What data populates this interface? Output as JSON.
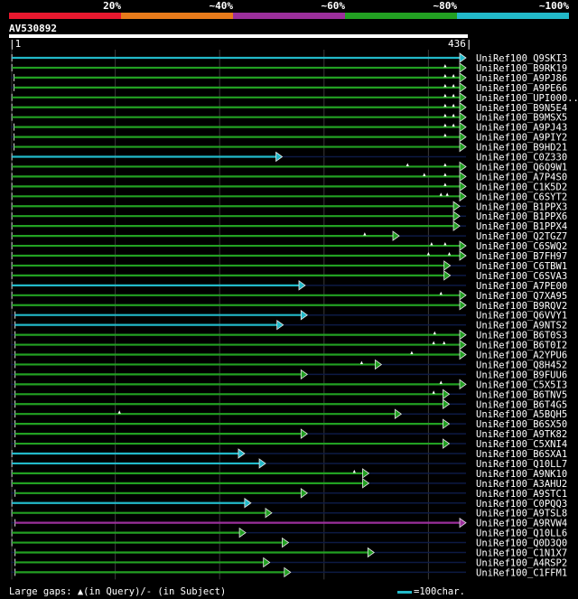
{
  "identity_legend": [
    {
      "label": "20%",
      "color": "#e8182e"
    },
    {
      "label": "~40%",
      "color": "#e87b1a"
    },
    {
      "label": "~60%",
      "color": "#9b2f9b"
    },
    {
      "label": "~80%",
      "color": "#22a022"
    },
    {
      "label": "~100%",
      "color": "#22b9c9"
    }
  ],
  "query": {
    "id": "AV530892",
    "start": "1",
    "end": "436",
    "length": 436
  },
  "footer": {
    "gaps_label": "Large gaps: ▲(in Query)/- (in Subject)",
    "scale_label": "=100char.",
    "scale_color": "#22b9c9"
  },
  "hits": [
    {
      "name": "UniRef100_Q9SKI3",
      "start": 1,
      "end": 436,
      "color": "cyan",
      "gaps": []
    },
    {
      "name": "UniRef100_B9RK19",
      "start": 1,
      "end": 436,
      "color": "green",
      "gaps": [
        416
      ]
    },
    {
      "name": "UniRef100_A9PJ86",
      "start": 3,
      "end": 436,
      "color": "green",
      "gaps": [
        416,
        424
      ]
    },
    {
      "name": "UniRef100_A9PE66",
      "start": 3,
      "end": 436,
      "color": "green",
      "gaps": [
        416,
        424
      ]
    },
    {
      "name": "UniRef100_UPI000..",
      "start": 1,
      "end": 436,
      "color": "green",
      "gaps": [
        416,
        424
      ]
    },
    {
      "name": "UniRef100_B9N5E4",
      "start": 1,
      "end": 436,
      "color": "green",
      "gaps": [
        416,
        424
      ]
    },
    {
      "name": "UniRef100_B9MSX5",
      "start": 1,
      "end": 436,
      "color": "green",
      "gaps": [
        416,
        424
      ]
    },
    {
      "name": "UniRef100_A9PJ43",
      "start": 3,
      "end": 436,
      "color": "green",
      "gaps": [
        416,
        424
      ]
    },
    {
      "name": "UniRef100_A9PIY2",
      "start": 3,
      "end": 436,
      "color": "green",
      "gaps": [
        416
      ]
    },
    {
      "name": "UniRef100_B9HD21",
      "start": 3,
      "end": 436,
      "color": "green",
      "gaps": []
    },
    {
      "name": "UniRef100_C0Z330",
      "start": 1,
      "end": 260,
      "color": "cyan",
      "gaps": []
    },
    {
      "name": "UniRef100_Q6Q9W1",
      "start": 1,
      "end": 436,
      "color": "green",
      "gaps": [
        380,
        416
      ]
    },
    {
      "name": "UniRef100_A7P4S0",
      "start": 1,
      "end": 436,
      "color": "green",
      "gaps": [
        396,
        416
      ]
    },
    {
      "name": "UniRef100_C1K5D2",
      "start": 1,
      "end": 436,
      "color": "green",
      "gaps": [
        416
      ]
    },
    {
      "name": "UniRef100_C6SYT2",
      "start": 1,
      "end": 436,
      "color": "green",
      "gaps": [
        412,
        418
      ]
    },
    {
      "name": "UniRef100_B1PPX3",
      "start": 1,
      "end": 430,
      "color": "green",
      "gaps": []
    },
    {
      "name": "UniRef100_B1PPX6",
      "start": 1,
      "end": 430,
      "color": "green",
      "gaps": []
    },
    {
      "name": "UniRef100_B1PPX4",
      "start": 1,
      "end": 430,
      "color": "green",
      "gaps": []
    },
    {
      "name": "UniRef100_Q2TGZ7",
      "start": 1,
      "end": 372,
      "color": "green",
      "gaps": [
        339
      ]
    },
    {
      "name": "UniRef100_C6SWQ2",
      "start": 1,
      "end": 436,
      "color": "green",
      "gaps": [
        403,
        416
      ]
    },
    {
      "name": "UniRef100_B7FH97",
      "start": 1,
      "end": 436,
      "color": "green",
      "gaps": [
        400,
        420
      ]
    },
    {
      "name": "UniRef100_C6TBW1",
      "start": 1,
      "end": 421,
      "color": "green",
      "gaps": []
    },
    {
      "name": "UniRef100_C6SVA3",
      "start": 1,
      "end": 421,
      "color": "green",
      "gaps": []
    },
    {
      "name": "UniRef100_A7PE00",
      "start": 1,
      "end": 282,
      "color": "cyan",
      "gaps": []
    },
    {
      "name": "UniRef100_Q7XA95",
      "start": 1,
      "end": 436,
      "color": "green",
      "gaps": [
        412
      ]
    },
    {
      "name": "UniRef100_B9RQV2",
      "start": 1,
      "end": 436,
      "color": "green",
      "gaps": []
    },
    {
      "name": "UniRef100_Q6VVY1",
      "start": 4,
      "end": 284,
      "color": "cyan",
      "gaps": []
    },
    {
      "name": "UniRef100_A9NTS2",
      "start": 4,
      "end": 261,
      "color": "cyan",
      "gaps": []
    },
    {
      "name": "UniRef100_B6T0S3",
      "start": 4,
      "end": 436,
      "color": "green",
      "gaps": [
        406
      ]
    },
    {
      "name": "UniRef100_B6T0I2",
      "start": 4,
      "end": 436,
      "color": "green",
      "gaps": [
        405,
        415
      ]
    },
    {
      "name": "UniRef100_A2YPU6",
      "start": 4,
      "end": 436,
      "color": "green",
      "gaps": [
        384
      ]
    },
    {
      "name": "UniRef100_Q8H452",
      "start": 4,
      "end": 355,
      "color": "green",
      "gaps": [
        336
      ]
    },
    {
      "name": "UniRef100_B9FUU6",
      "start": 4,
      "end": 284,
      "color": "green",
      "gaps": []
    },
    {
      "name": "UniRef100_C5X5I3",
      "start": 4,
      "end": 436,
      "color": "green",
      "gaps": [
        412
      ]
    },
    {
      "name": "UniRef100_B6TNV5",
      "start": 4,
      "end": 420,
      "color": "green",
      "gaps": [
        405
      ]
    },
    {
      "name": "UniRef100_B6T4G5",
      "start": 4,
      "end": 420,
      "color": "green",
      "gaps": []
    },
    {
      "name": "UniRef100_A5BQH5",
      "start": 4,
      "end": 374,
      "color": "green",
      "gaps": [
        104
      ]
    },
    {
      "name": "UniRef100_B6SX50",
      "start": 4,
      "end": 420,
      "color": "green",
      "gaps": []
    },
    {
      "name": "UniRef100_A9TK82",
      "start": 4,
      "end": 284,
      "color": "green",
      "gaps": []
    },
    {
      "name": "UniRef100_C5XNI4",
      "start": 4,
      "end": 420,
      "color": "green",
      "gaps": []
    },
    {
      "name": "UniRef100_B6SXA1",
      "start": 1,
      "end": 224,
      "color": "cyan",
      "gaps": []
    },
    {
      "name": "UniRef100_Q10LL7",
      "start": 1,
      "end": 244,
      "color": "cyan",
      "gaps": []
    },
    {
      "name": "UniRef100_A9NK10",
      "start": 1,
      "end": 343,
      "color": "green",
      "gaps": [
        329
      ]
    },
    {
      "name": "UniRef100_A3AHU2",
      "start": 1,
      "end": 343,
      "color": "green",
      "gaps": []
    },
    {
      "name": "UniRef100_A9STC1",
      "start": 4,
      "end": 284,
      "color": "green",
      "gaps": []
    },
    {
      "name": "UniRef100_C0PQQ3",
      "start": 1,
      "end": 230,
      "color": "cyan",
      "gaps": []
    },
    {
      "name": "UniRef100_A9TSL8",
      "start": 1,
      "end": 250,
      "color": "green",
      "gaps": []
    },
    {
      "name": "UniRef100_A9RVW4",
      "start": 4,
      "end": 436,
      "color": "purple",
      "gaps": []
    },
    {
      "name": "UniRef100_Q10LL6",
      "start": 1,
      "end": 225,
      "color": "green",
      "gaps": []
    },
    {
      "name": "UniRef100_Q0D3Q0",
      "start": 1,
      "end": 266,
      "color": "green",
      "gaps": []
    },
    {
      "name": "UniRef100_C1N1X7",
      "start": 4,
      "end": 348,
      "color": "green",
      "gaps": []
    },
    {
      "name": "UniRef100_A4RSP2",
      "start": 4,
      "end": 248,
      "color": "green",
      "gaps": []
    },
    {
      "name": "UniRef100_C1FFM1",
      "start": 4,
      "end": 268,
      "color": "green",
      "gaps": []
    }
  ]
}
